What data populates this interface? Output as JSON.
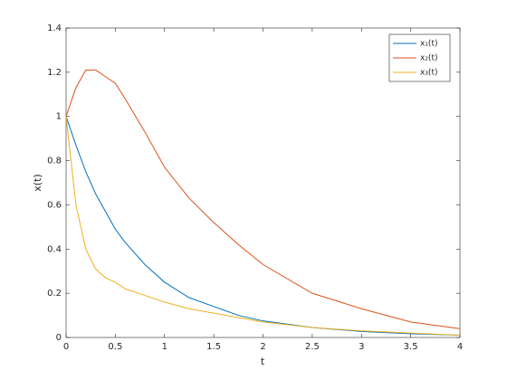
{
  "chart_data": {
    "type": "line",
    "xlabel": "t",
    "ylabel": "x(t)",
    "x": [
      0,
      0.1,
      0.2,
      0.3,
      0.4,
      0.5,
      0.6,
      0.8,
      1,
      1.25,
      1.5,
      1.75,
      2,
      2.5,
      3,
      3.5,
      4
    ],
    "series": [
      {
        "name": "x₁(t)",
        "color": "#0072bd",
        "values": [
          1,
          0.87,
          0.75,
          0.65,
          0.57,
          0.49,
          0.43,
          0.33,
          0.25,
          0.18,
          0.14,
          0.1,
          0.075,
          0.045,
          0.027,
          0.017,
          0.01
        ]
      },
      {
        "name": "x₂(t)",
        "color": "#d95319",
        "values": [
          1,
          1.13,
          1.21,
          1.21,
          1.18,
          1.15,
          1.08,
          0.93,
          0.77,
          0.63,
          0.52,
          0.42,
          0.33,
          0.2,
          0.13,
          0.07,
          0.04
        ]
      },
      {
        "name": "x₃(t)",
        "color": "#edb120",
        "values": [
          1,
          0.6,
          0.4,
          0.31,
          0.27,
          0.25,
          0.22,
          0.19,
          0.16,
          0.13,
          0.11,
          0.09,
          0.07,
          0.045,
          0.03,
          0.02,
          0.01
        ]
      }
    ],
    "xlim": [
      0,
      4
    ],
    "xticks": [
      0,
      0.5,
      1,
      1.5,
      2,
      2.5,
      3,
      3.5,
      4
    ],
    "ylim": [
      0,
      1.4
    ],
    "yticks": [
      0,
      0.2,
      0.4,
      0.6,
      0.8,
      1,
      1.2,
      1.4
    ],
    "grid": false,
    "legend": "top-right"
  }
}
